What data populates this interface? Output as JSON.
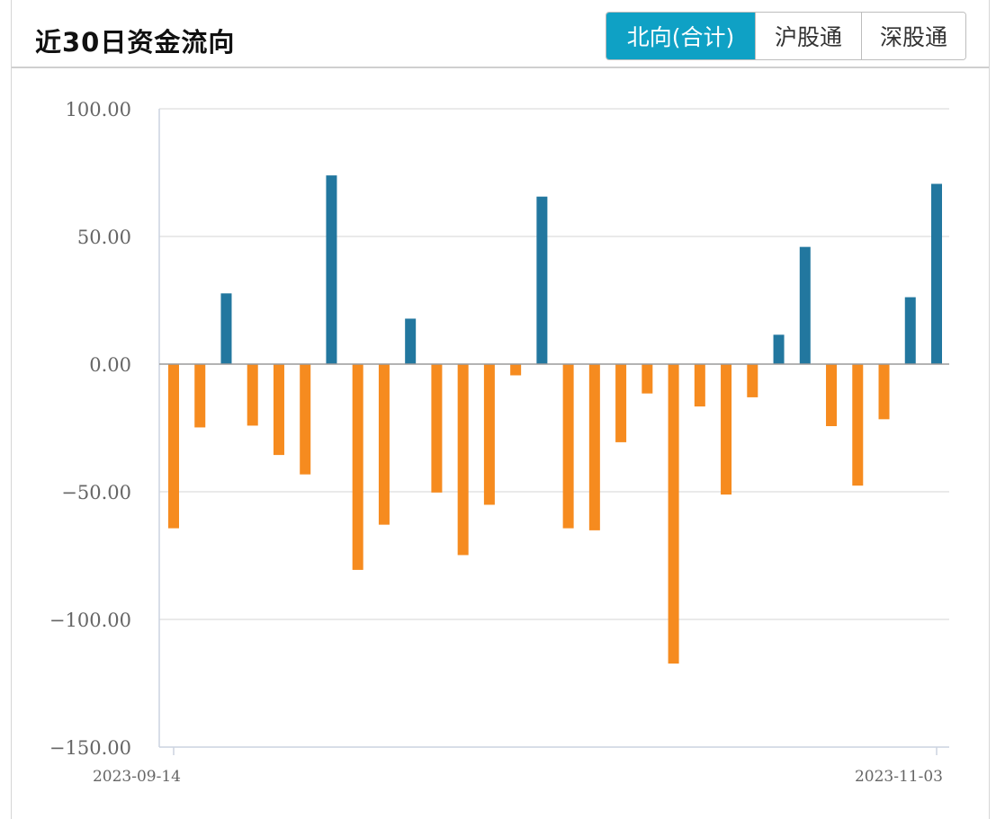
{
  "header": {
    "title": "近30日资金流向",
    "tabs": [
      {
        "label": "北向(合计)",
        "active": true
      },
      {
        "label": "沪股通",
        "active": false
      },
      {
        "label": "深股通",
        "active": false
      }
    ]
  },
  "colors": {
    "positive": "#22779f",
    "negative": "#f68b1f",
    "active_tab": "#0fa1c5"
  },
  "chart_data": {
    "type": "bar",
    "title": "",
    "xlabel": "",
    "ylabel": "",
    "ylim": [
      -150,
      100
    ],
    "y_ticks": [
      "100.00",
      "50.00",
      "0.00",
      "-50.00",
      "-100.00",
      "-150.00"
    ],
    "x_tick_labels": [
      "2023-09-14",
      "2023-11-03"
    ],
    "grid": true,
    "values": [
      -64.3,
      -24.8,
      27.7,
      -24.1,
      -35.6,
      -43.2,
      73.9,
      -80.6,
      -62.9,
      17.8,
      -50.3,
      -74.8,
      -55.1,
      -4.4,
      65.6,
      -64.3,
      -65.1,
      -30.6,
      -11.5,
      -117.3,
      -16.6,
      -51.1,
      -13.0,
      11.5,
      45.9,
      -24.3,
      -47.6,
      -21.6,
      26.2,
      70.6
    ]
  }
}
